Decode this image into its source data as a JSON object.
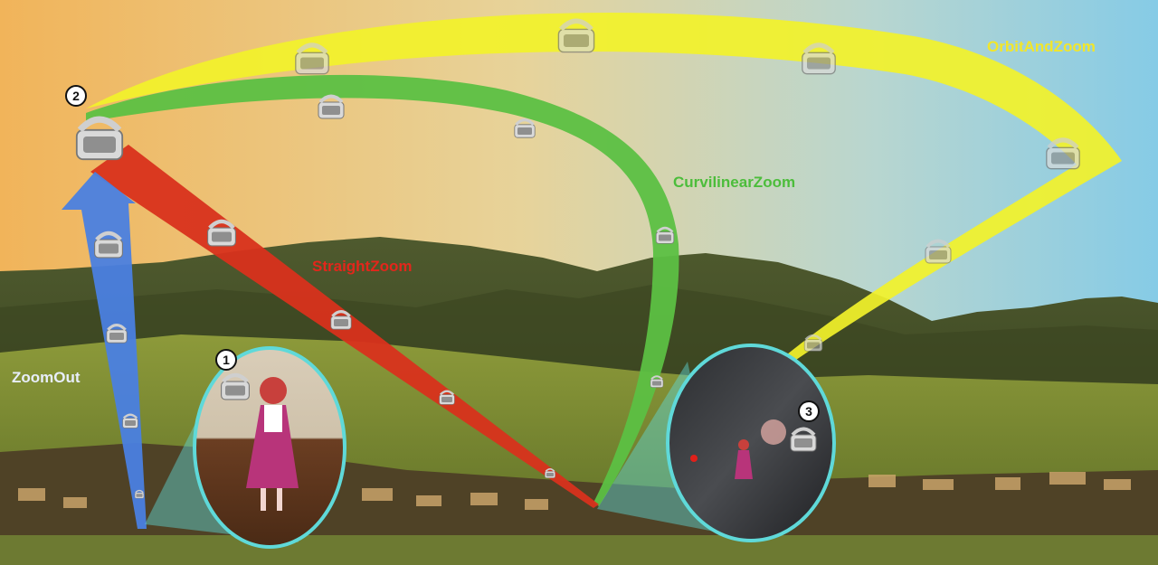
{
  "labels": {
    "zoom_out": "ZoomOut",
    "straight_zoom": "StraightZoom",
    "curvilinear_zoom": "CurvilinearZoom",
    "orbit_and_zoom": "OrbitAndZoom"
  },
  "markers": {
    "m1": "1",
    "m2": "2",
    "m3": "3"
  },
  "colors": {
    "zoom_out": "#4a7fe0",
    "straight_zoom": "#d8321c",
    "curvilinear_zoom": "#5cc043",
    "orbit_and_zoom": "#f2f22a",
    "portal_border": "#5fd9d9"
  },
  "icons": [
    "vr-headset-icon"
  ]
}
